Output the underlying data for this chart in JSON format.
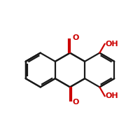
{
  "bg_color": "#ffffff",
  "bond_color": "#1a1a1a",
  "red_color": "#cc0000",
  "line_width": 1.6,
  "figsize": [
    2.0,
    2.0
  ],
  "dpi": 100,
  "xlim": [
    0,
    10
  ],
  "ylim": [
    0,
    10
  ]
}
